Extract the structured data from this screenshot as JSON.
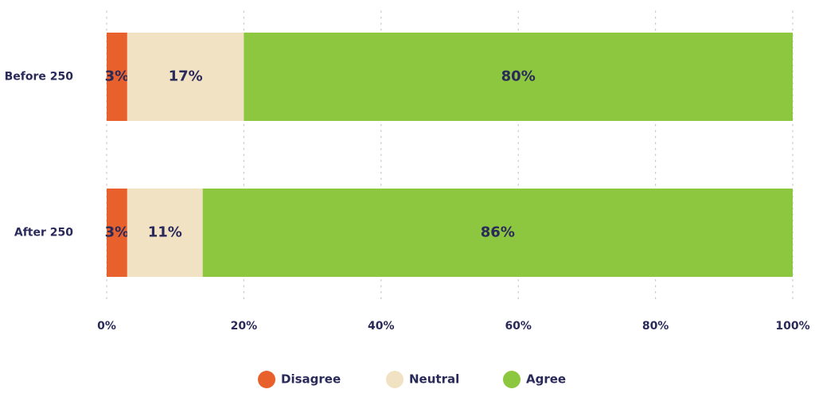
{
  "chart_data": {
    "type": "bar",
    "orientation": "horizontal",
    "stacked": true,
    "title": "",
    "xlabel": "",
    "ylabel": "",
    "categories": [
      "Before 250",
      "After 250"
    ],
    "series": [
      {
        "name": "Disagree",
        "values": [
          3,
          3
        ],
        "labels": [
          "3%",
          "3%"
        ],
        "color": "#e8602c"
      },
      {
        "name": "Neutral",
        "values": [
          17,
          11
        ],
        "labels": [
          "17%",
          "11%"
        ],
        "color": "#f2e2c4"
      },
      {
        "name": "Agree",
        "values": [
          80,
          86
        ],
        "labels": [
          "80%",
          "86%"
        ],
        "color": "#8dc63f"
      }
    ],
    "xlim": [
      0,
      100
    ],
    "x_ticks": [
      0,
      20,
      40,
      60,
      80,
      100
    ],
    "x_tick_labels": [
      "0%",
      "20%",
      "40%",
      "60%",
      "80%",
      "100%"
    ],
    "grid": true,
    "legend_position": "bottom-center"
  }
}
